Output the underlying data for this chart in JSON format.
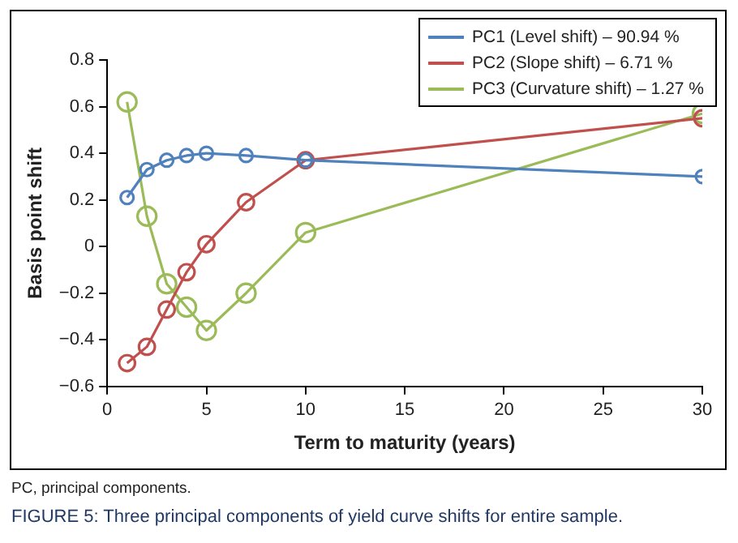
{
  "chart_data": {
    "type": "line",
    "title": "FIGURE 5: Three principal components of yield curve shifts for entire sample.",
    "annotations": [
      "PC, principal components."
    ],
    "xlabel": "Term to maturity (years)",
    "ylabel": "Basis point shift",
    "x": [
      1,
      2,
      3,
      4,
      5,
      7,
      10,
      30
    ],
    "series": [
      {
        "name": "PC1 (Level shift) – 90.94 %",
        "color": "#4f81bd",
        "values": [
          0.21,
          0.33,
          0.37,
          0.39,
          0.4,
          0.39,
          0.37,
          0.3
        ]
      },
      {
        "name": "PC2 (Slope shift) – 6.71 %",
        "color": "#c0504d",
        "values": [
          -0.5,
          -0.43,
          -0.27,
          -0.11,
          0.01,
          0.19,
          0.37,
          0.55
        ]
      },
      {
        "name": "PC3 (Curvature shift) – 1.27 %",
        "color": "#9bbb59",
        "values": [
          0.62,
          0.13,
          -0.16,
          -0.26,
          -0.36,
          -0.2,
          0.06,
          0.57
        ]
      }
    ],
    "xlim": [
      0,
      30
    ],
    "xticks": [
      0,
      5,
      10,
      15,
      20,
      25,
      30
    ],
    "ylim": [
      -0.6,
      0.8
    ],
    "yticks": [
      -0.6,
      -0.4,
      -0.2,
      0,
      0.2,
      0.4,
      0.6,
      0.8
    ],
    "grid": false,
    "legend": "top right",
    "marker": "circle",
    "line_style": "solid"
  }
}
